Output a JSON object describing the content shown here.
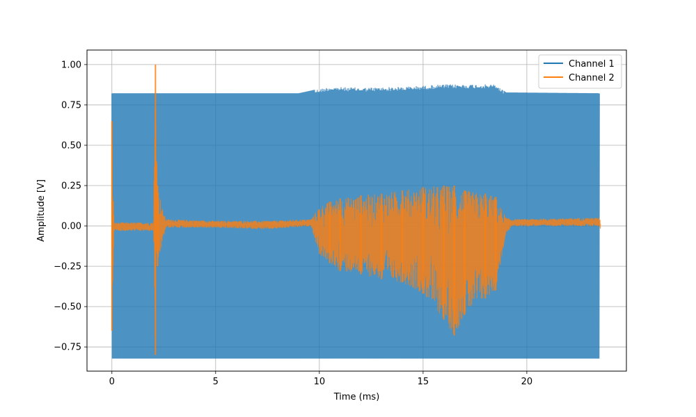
{
  "chart_data": {
    "type": "line",
    "title": "",
    "xlabel": "Time (ms)",
    "ylabel": "Amplitude [V]",
    "xlim": [
      -1.2,
      24.8
    ],
    "ylim": [
      -0.9,
      1.09
    ],
    "xticks": [
      0,
      5,
      10,
      15,
      20
    ],
    "yticks": [
      -0.75,
      -0.5,
      -0.25,
      0.0,
      0.25,
      0.5,
      0.75,
      1.0
    ],
    "xtick_labels": [
      "0",
      "5",
      "10",
      "15",
      "20"
    ],
    "ytick_labels": [
      "−0.75",
      "−0.50",
      "−0.25",
      "0.00",
      "0.25",
      "0.50",
      "0.75",
      "1.00"
    ],
    "grid": true,
    "legend": {
      "location": "top-right"
    },
    "series": [
      {
        "name": "Channel 1",
        "color": "#1f77b4",
        "style": "dense oscillating envelope",
        "envelope": [
          {
            "x": 0.0,
            "upper": 0.82,
            "lower": -0.82
          },
          {
            "x": 2.0,
            "upper": 0.82,
            "lower": -0.82
          },
          {
            "x": 5.0,
            "upper": 0.82,
            "lower": -0.82
          },
          {
            "x": 9.0,
            "upper": 0.82,
            "lower": -0.82
          },
          {
            "x": 9.9,
            "upper": 0.845,
            "lower": -0.82
          },
          {
            "x": 10.5,
            "upper": 0.86,
            "lower": -0.82
          },
          {
            "x": 12.0,
            "upper": 0.855,
            "lower": -0.82
          },
          {
            "x": 14.0,
            "upper": 0.86,
            "lower": -0.82
          },
          {
            "x": 16.0,
            "upper": 0.875,
            "lower": -0.82
          },
          {
            "x": 18.5,
            "upper": 0.875,
            "lower": -0.82
          },
          {
            "x": 19.0,
            "upper": 0.825,
            "lower": -0.82
          },
          {
            "x": 23.5,
            "upper": 0.82,
            "lower": -0.82
          }
        ]
      },
      {
        "name": "Channel 2",
        "color": "#ff7f0e",
        "style": "noisy signal with bursts",
        "envelope": [
          {
            "x": 0.0,
            "upper": 0.65,
            "lower": -0.65
          },
          {
            "x": 0.1,
            "upper": 0.02,
            "lower": -0.03
          },
          {
            "x": 2.0,
            "upper": 0.02,
            "lower": -0.03
          },
          {
            "x": 2.1,
            "upper": 1.0,
            "lower": -0.8
          },
          {
            "x": 2.2,
            "upper": 0.25,
            "lower": -0.25
          },
          {
            "x": 2.45,
            "upper": 0.1,
            "lower": -0.1
          },
          {
            "x": 2.6,
            "upper": 0.04,
            "lower": -0.01
          },
          {
            "x": 5.0,
            "upper": 0.03,
            "lower": -0.01
          },
          {
            "x": 7.5,
            "upper": 0.03,
            "lower": -0.02
          },
          {
            "x": 9.6,
            "upper": 0.04,
            "lower": 0.0
          },
          {
            "x": 10.0,
            "upper": 0.12,
            "lower": -0.18
          },
          {
            "x": 10.5,
            "upper": 0.15,
            "lower": -0.23
          },
          {
            "x": 11.0,
            "upper": 0.17,
            "lower": -0.28
          },
          {
            "x": 12.0,
            "upper": 0.19,
            "lower": -0.3
          },
          {
            "x": 13.0,
            "upper": 0.2,
            "lower": -0.33
          },
          {
            "x": 14.0,
            "upper": 0.22,
            "lower": -0.35
          },
          {
            "x": 15.0,
            "upper": 0.24,
            "lower": -0.42
          },
          {
            "x": 16.0,
            "upper": 0.25,
            "lower": -0.58
          },
          {
            "x": 16.5,
            "upper": 0.25,
            "lower": -0.68
          },
          {
            "x": 17.0,
            "upper": 0.22,
            "lower": -0.55
          },
          {
            "x": 18.0,
            "upper": 0.2,
            "lower": -0.45
          },
          {
            "x": 18.5,
            "upper": 0.18,
            "lower": -0.4
          },
          {
            "x": 19.0,
            "upper": 0.05,
            "lower": -0.05
          },
          {
            "x": 19.3,
            "upper": 0.04,
            "lower": 0.0
          },
          {
            "x": 23.5,
            "upper": 0.05,
            "lower": 0.0
          },
          {
            "x": 23.55,
            "upper": 0.03,
            "lower": -0.03
          }
        ]
      }
    ]
  }
}
